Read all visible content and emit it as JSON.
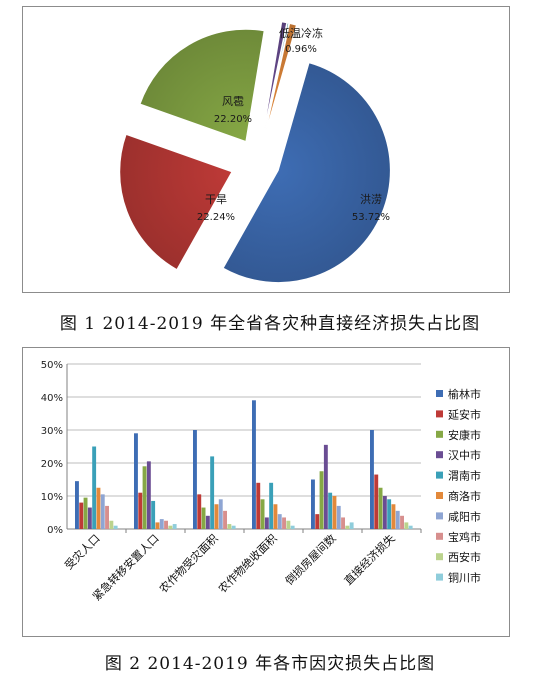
{
  "chart_data": [
    {
      "type": "pie",
      "title": "",
      "slices": [
        {
          "label": "洪涝",
          "value_label": "53.72%",
          "value": 53.72,
          "color": "#3E6DB4"
        },
        {
          "label": "干旱",
          "value_label": "22.24%",
          "value": 22.24,
          "color": "#BE3A37"
        },
        {
          "label": "风雹",
          "value_label": "22.20%",
          "value": 22.2,
          "color": "#86A845"
        },
        {
          "label": "",
          "value_label": "",
          "value": 0.7,
          "color": "#6A4D93"
        },
        {
          "label": "",
          "value_label": "",
          "value": 0.18,
          "color": "#3AA0B8"
        },
        {
          "label": "低温冷冻",
          "value_label": "0.96%",
          "value": 0.96,
          "color": "#E3893A"
        }
      ]
    },
    {
      "type": "bar",
      "title": "",
      "categories": [
        "受灾人口",
        "紧急转移安置人口",
        "农作物受灾面积",
        "农作物绝收面积",
        "倒损房屋间数",
        "直接经济损失"
      ],
      "ylim": [
        0,
        50
      ],
      "yticks": [
        "0%",
        "10%",
        "20%",
        "30%",
        "40%",
        "50%"
      ],
      "legend_position": "right",
      "series": [
        {
          "name": "榆林市",
          "color": "#3E6DB4",
          "values": [
            14.5,
            29,
            30,
            39,
            15,
            30
          ]
        },
        {
          "name": "延安市",
          "color": "#BE3A37",
          "values": [
            8,
            11,
            10.5,
            14,
            4.5,
            16.5
          ]
        },
        {
          "name": "安康市",
          "color": "#86A845",
          "values": [
            9.5,
            19,
            6.5,
            9,
            17.5,
            12.5
          ]
        },
        {
          "name": "汉中市",
          "color": "#6A4D93",
          "values": [
            6.5,
            20.5,
            4,
            3.5,
            25.5,
            10
          ]
        },
        {
          "name": "渭南市",
          "color": "#3AA0B8",
          "values": [
            25,
            8.5,
            22,
            14,
            11,
            9
          ]
        },
        {
          "name": "商洛市",
          "color": "#E3893A",
          "values": [
            12.5,
            2,
            7.5,
            7.5,
            10,
            7.5
          ]
        },
        {
          "name": "咸阳市",
          "color": "#8EA5D3",
          "values": [
            10.5,
            3,
            9,
            4.5,
            7,
            5.5
          ]
        },
        {
          "name": "宝鸡市",
          "color": "#D78F8E",
          "values": [
            7,
            2.5,
            5.5,
            3.5,
            3.5,
            4
          ]
        },
        {
          "name": "西安市",
          "color": "#BBD38D",
          "values": [
            2.5,
            1,
            1.5,
            2.5,
            1,
            2
          ]
        },
        {
          "name": "铜川市",
          "color": "#8FCDDB",
          "values": [
            1,
            1.5,
            1,
            1,
            2,
            1
          ]
        }
      ]
    }
  ],
  "captions": {
    "fig1": "图 1 2014-2019 年全省各灾种直接经济损失占比图",
    "fig2": "图 2 2014-2019 年各市因灾损失占比图"
  }
}
